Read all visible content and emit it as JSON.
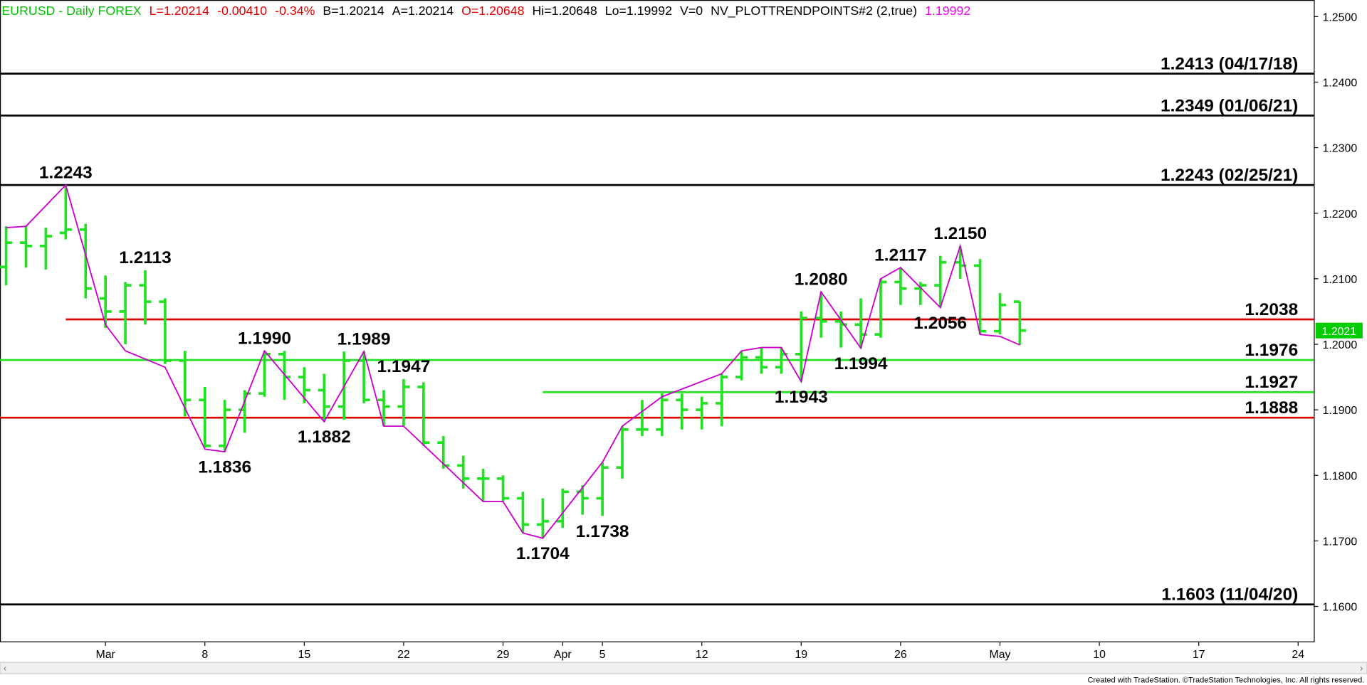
{
  "chart_data": {
    "type": "ohlc",
    "header": [
      {
        "text": "EURUSD - Daily  FOREX",
        "color": "#00c000"
      },
      {
        "text": "L=1.20214",
        "color": "#e00000"
      },
      {
        "text": "-0.00410",
        "color": "#e00000"
      },
      {
        "text": "-0.34%",
        "color": "#e00000"
      },
      {
        "text": "B=1.20214",
        "color": "#000000"
      },
      {
        "text": "A=1.20214",
        "color": "#000000"
      },
      {
        "text": "O=1.20648",
        "color": "#e00000"
      },
      {
        "text": "Hi=1.20648",
        "color": "#000000"
      },
      {
        "text": "Lo=1.19992",
        "color": "#000000"
      },
      {
        "text": "V=0",
        "color": "#000000"
      },
      {
        "text": "NV_PLOTTRENDPOINTS#2 (2,true)",
        "color": "#000000"
      },
      {
        "text": "1.19992",
        "color": "#ee00ee"
      }
    ],
    "categories": [
      null,
      null,
      null,
      null,
      null,
      "Mar",
      null,
      null,
      null,
      null,
      "8",
      null,
      null,
      null,
      null,
      "15",
      null,
      null,
      null,
      null,
      "22",
      null,
      null,
      null,
      null,
      "29",
      null,
      null,
      "Apr",
      null,
      "5",
      null,
      null,
      null,
      null,
      "12",
      null,
      null,
      null,
      null,
      "19",
      null,
      null,
      null,
      null,
      "26",
      null,
      null,
      null,
      null,
      "May",
      null,
      null,
      null,
      null,
      "10",
      null,
      null,
      null,
      null,
      "17",
      null,
      null,
      null,
      null,
      "24"
    ],
    "open": [
      1.2118,
      1.2155,
      1.215,
      1.217,
      1.2175,
      1.207,
      1.205,
      1.209,
      1.2065,
      1.1975,
      1.1915,
      1.1845,
      1.19,
      1.1925,
      1.1985,
      1.195,
      1.193,
      1.1905,
      1.1975,
      1.1915,
      1.1905,
      1.1935,
      1.185,
      1.1815,
      1.1795,
      1.1795,
      1.1765,
      1.1725,
      1.173,
      1.1775,
      1.1765,
      1.1812,
      1.187,
      1.187,
      1.1915,
      1.19,
      1.191,
      1.195,
      1.198,
      1.1965,
      1.1985,
      1.204,
      1.2035,
      1.203,
      1.2015,
      1.2095,
      1.2085,
      1.209,
      1.2125,
      1.212,
      1.202,
      1.2065,
      null,
      null,
      null,
      null,
      null,
      null,
      null,
      null,
      null,
      null,
      null,
      null,
      null,
      null
    ],
    "high": [
      1.218,
      1.218,
      1.2178,
      1.2243,
      1.2184,
      1.2105,
      1.2095,
      1.2113,
      1.207,
      1.199,
      1.1935,
      1.1915,
      1.193,
      1.199,
      1.199,
      1.1965,
      1.1955,
      1.1989,
      1.1989,
      1.193,
      1.1947,
      1.1942,
      1.186,
      1.183,
      1.181,
      1.18,
      1.1775,
      1.1765,
      1.178,
      1.1785,
      1.182,
      1.1875,
      1.1915,
      1.1925,
      1.1925,
      1.192,
      1.1955,
      1.199,
      1.1995,
      1.1995,
      1.205,
      1.208,
      1.205,
      1.207,
      1.21,
      1.2117,
      1.2095,
      1.2135,
      1.215,
      1.213,
      1.2078,
      1.2065,
      null,
      null,
      null,
      null,
      null,
      null,
      null,
      null,
      null,
      null,
      null,
      null,
      null,
      null
    ],
    "low": [
      1.209,
      1.2117,
      1.2114,
      1.216,
      1.207,
      1.2025,
      1.2,
      1.203,
      1.197,
      1.189,
      1.1842,
      1.1836,
      1.1865,
      1.192,
      1.1915,
      1.191,
      1.1882,
      1.1885,
      1.191,
      1.1875,
      1.1875,
      1.1845,
      1.181,
      1.178,
      1.176,
      1.176,
      1.1712,
      1.1704,
      1.172,
      1.174,
      1.1738,
      1.1795,
      1.186,
      1.186,
      1.187,
      1.187,
      1.1875,
      1.1945,
      1.1955,
      1.1955,
      1.1943,
      1.201,
      1.1995,
      1.1994,
      1.201,
      1.206,
      1.206,
      1.2056,
      1.21,
      1.2015,
      1.2015,
      1.1999,
      null,
      null,
      null,
      null,
      null,
      null,
      null,
      null,
      null,
      null,
      null,
      null,
      null,
      null
    ],
    "close": [
      1.2155,
      1.215,
      1.2165,
      1.2175,
      1.2085,
      1.205,
      1.209,
      1.2065,
      1.1975,
      1.1915,
      1.1845,
      1.19,
      1.1925,
      1.1985,
      1.195,
      1.193,
      1.1905,
      1.1975,
      1.1915,
      1.1905,
      1.1935,
      1.185,
      1.1815,
      1.1795,
      1.1795,
      1.1765,
      1.1725,
      1.173,
      1.1775,
      1.1765,
      1.1812,
      1.187,
      1.187,
      1.1915,
      1.19,
      1.191,
      1.195,
      1.198,
      1.1965,
      1.1985,
      1.204,
      1.2035,
      1.203,
      1.2015,
      1.2095,
      1.2085,
      1.209,
      1.2125,
      1.212,
      1.202,
      1.206,
      1.2021,
      null,
      null,
      null,
      null,
      null,
      null,
      null,
      null,
      null,
      null,
      null,
      null,
      null,
      null
    ],
    "color": "#22e022",
    "trend": {
      "color": "#cc00cc",
      "x": [
        0,
        1,
        3,
        5,
        6,
        8,
        10,
        11,
        13,
        16,
        18,
        19,
        20,
        24,
        25,
        26,
        27,
        30,
        31,
        33,
        36,
        37,
        38,
        39,
        40,
        41,
        43,
        44,
        45,
        47,
        48,
        49,
        50,
        51
      ],
      "values": [
        1.2178,
        1.218,
        1.2243,
        1.203,
        1.199,
        1.1965,
        1.184,
        1.1836,
        1.199,
        1.1882,
        1.1989,
        1.1875,
        1.1875,
        1.176,
        1.176,
        1.1712,
        1.1704,
        1.182,
        1.1875,
        1.192,
        1.1955,
        1.199,
        1.1995,
        1.1995,
        1.1943,
        1.208,
        1.1994,
        1.21,
        1.2117,
        1.2056,
        1.215,
        1.2015,
        1.2012,
        1.1999
      ]
    },
    "annotations": [
      {
        "text": "1.2243",
        "x": 3,
        "value": 1.2243
      },
      {
        "text": "1.2113",
        "x": 7,
        "value": 1.2113
      },
      {
        "text": "1.1836",
        "x": 11,
        "value": 1.1836
      },
      {
        "text": "1.1990",
        "x": 13,
        "value": 1.199
      },
      {
        "text": "1.1882",
        "x": 16,
        "value": 1.1882
      },
      {
        "text": "1.1989",
        "x": 18,
        "value": 1.1989
      },
      {
        "text": "1.1947",
        "x": 20,
        "value": 1.1947
      },
      {
        "text": "1.1704",
        "x": 27,
        "value": 1.1704
      },
      {
        "text": "1.1738",
        "x": 30,
        "value": 1.1738
      },
      {
        "text": "1.1943",
        "x": 40,
        "value": 1.1943
      },
      {
        "text": "1.2080",
        "x": 41,
        "value": 1.208
      },
      {
        "text": "1.1994",
        "x": 43,
        "value": 1.1994
      },
      {
        "text": "1.2117",
        "x": 45,
        "value": 1.2117
      },
      {
        "text": "1.2056",
        "x": 47,
        "value": 1.2056
      },
      {
        "text": "1.2150",
        "x": 48,
        "value": 1.215
      }
    ],
    "levels": [
      {
        "value": 1.2413,
        "label": "1.2413 (04/17/18)",
        "color": "#000000"
      },
      {
        "value": 1.2349,
        "label": "1.2349 (01/06/21)",
        "color": "#000000"
      },
      {
        "value": 1.2243,
        "label": "1.2243 (02/25/21)",
        "color": "#000000"
      },
      {
        "value": 1.2038,
        "label": "1.2038",
        "color": "#e00000",
        "start": 3
      },
      {
        "value": 1.1976,
        "label": "1.1976",
        "color": "#22e022"
      },
      {
        "value": 1.1927,
        "label": "1.1927",
        "color": "#22e022",
        "start": 27
      },
      {
        "value": 1.1888,
        "label": "1.1888",
        "color": "#e00000"
      },
      {
        "value": 1.1603,
        "label": "1.1603 (11/04/20)",
        "color": "#000000"
      }
    ],
    "last_price": 1.2021,
    "ylim": [
      1.15466,
      1.25253
    ],
    "yticks": [
      {
        "value": 1.16,
        "label": "1.1600"
      },
      {
        "value": 1.17,
        "label": "1.1700"
      },
      {
        "value": 1.18,
        "label": "1.1800"
      },
      {
        "value": 1.19,
        "label": "1.1900"
      },
      {
        "value": 1.2,
        "label": "1.2000"
      },
      {
        "value": 1.21,
        "label": "1.2100"
      },
      {
        "value": 1.22,
        "label": "1.2200"
      },
      {
        "value": 1.23,
        "label": "1.2300"
      },
      {
        "value": 1.24,
        "label": "1.2400"
      },
      {
        "value": 1.25,
        "label": "1.2500"
      }
    ],
    "footer": "Created with TradeStation. ©TradeStation Technologies, Inc. All rights reserved."
  }
}
